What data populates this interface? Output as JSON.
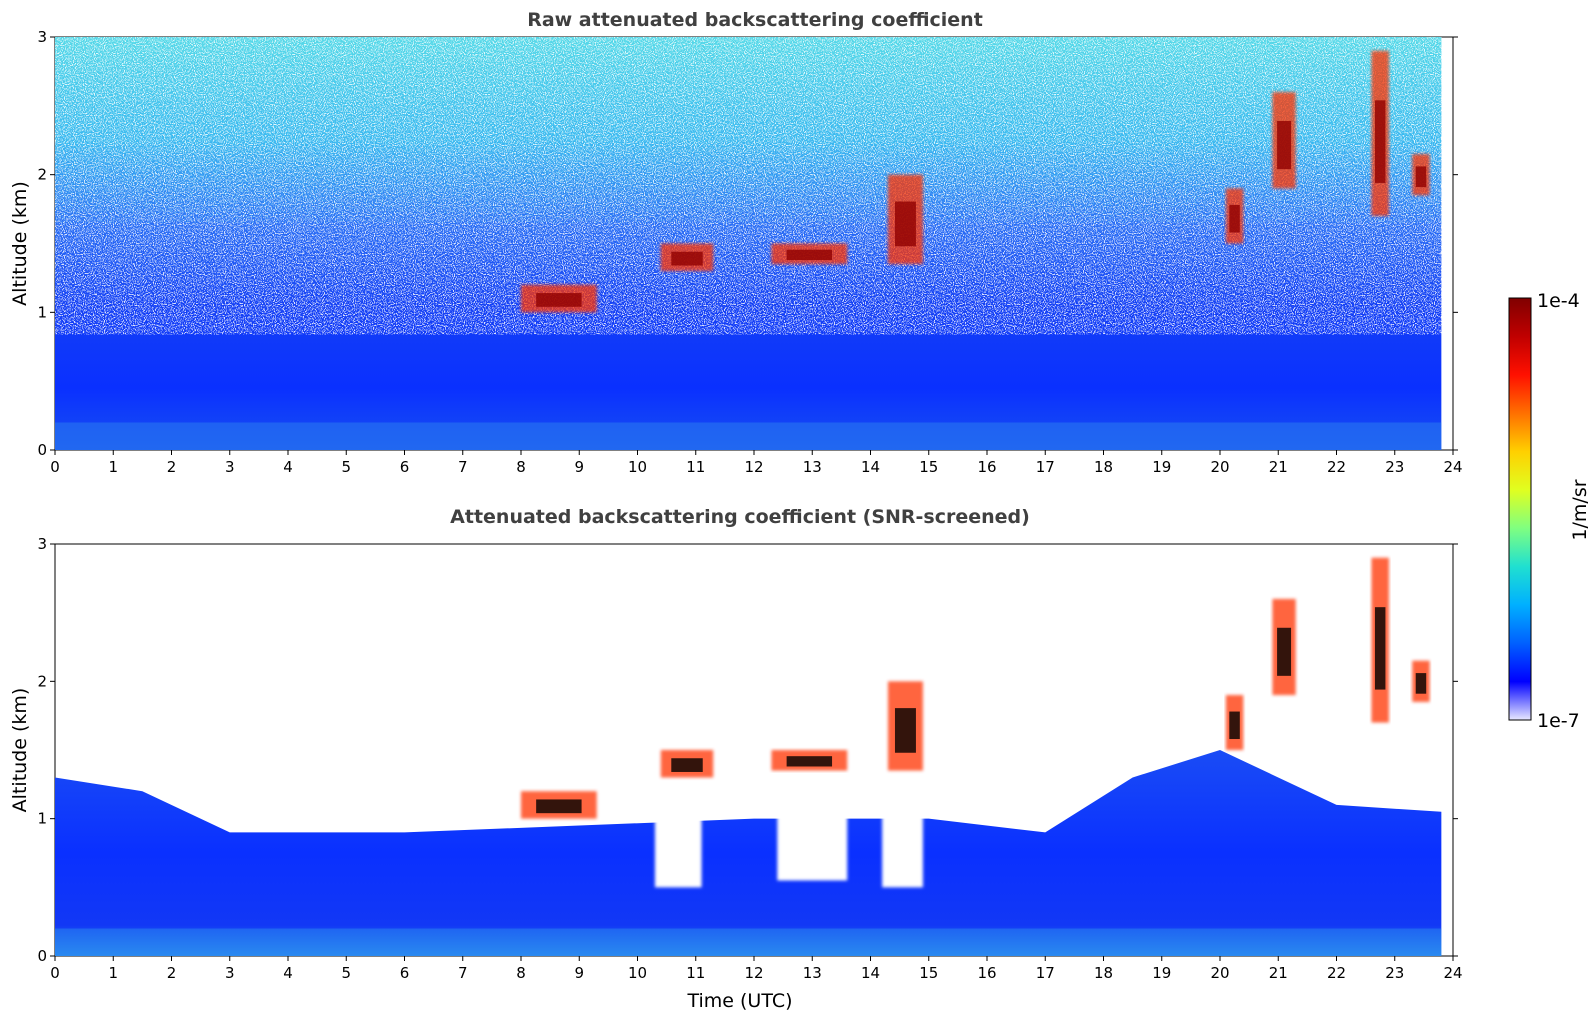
{
  "chart_data": [
    {
      "type": "heatmap",
      "title": "Raw attenuated backscattering coefficient",
      "xlabel": "",
      "ylabel": "Altitude (km)",
      "xlim": [
        0,
        24
      ],
      "ylim": [
        0,
        3
      ],
      "xticks": [
        "0",
        "1",
        "2",
        "3",
        "4",
        "5",
        "6",
        "7",
        "8",
        "9",
        "10",
        "11",
        "12",
        "13",
        "14",
        "15",
        "16",
        "17",
        "18",
        "19",
        "20",
        "21",
        "22",
        "23",
        "24"
      ],
      "yticks": [
        "0",
        "1",
        "2",
        "3"
      ],
      "data_extent_hours": 23.8,
      "boundary_layer_top_km": [
        [
          0,
          1.3
        ],
        [
          1.5,
          1.2
        ],
        [
          3,
          0.9
        ],
        [
          6,
          0.9
        ],
        [
          9,
          0.95
        ],
        [
          12,
          1.0
        ],
        [
          15,
          1.0
        ],
        [
          17,
          0.9
        ],
        [
          18.5,
          1.3
        ],
        [
          20,
          1.5
        ],
        [
          22,
          1.1
        ],
        [
          23.8,
          1.05
        ]
      ],
      "cloud_features": [
        {
          "time_range": [
            8.0,
            9.3
          ],
          "altitude_km": [
            1.0,
            1.2
          ],
          "level": "high"
        },
        {
          "time_range": [
            10.4,
            11.3
          ],
          "altitude_km": [
            1.3,
            1.5
          ],
          "level": "high"
        },
        {
          "time_range": [
            12.3,
            13.6
          ],
          "altitude_km": [
            1.35,
            1.5
          ],
          "level": "high"
        },
        {
          "time_range": [
            14.3,
            14.9
          ],
          "altitude_km": [
            1.35,
            2.0
          ],
          "level": "high"
        },
        {
          "time_range": [
            20.1,
            20.4
          ],
          "altitude_km": [
            1.5,
            1.9
          ],
          "level": "high"
        },
        {
          "time_range": [
            20.9,
            21.3
          ],
          "altitude_km": [
            1.9,
            2.6
          ],
          "level": "high"
        },
        {
          "time_range": [
            22.6,
            22.9
          ],
          "altitude_km": [
            1.7,
            2.9
          ],
          "level": "high"
        },
        {
          "time_range": [
            23.3,
            23.6
          ],
          "altitude_km": [
            1.85,
            2.15
          ],
          "level": "high"
        }
      ]
    },
    {
      "type": "heatmap",
      "title": "Attenuated backscattering coefficient (SNR-screened)",
      "xlabel": "Time (UTC)",
      "ylabel": "Altitude (km)",
      "xlim": [
        0,
        24
      ],
      "ylim": [
        0,
        3
      ],
      "xticks": [
        "0",
        "1",
        "2",
        "3",
        "4",
        "5",
        "6",
        "7",
        "8",
        "9",
        "10",
        "11",
        "12",
        "13",
        "14",
        "15",
        "16",
        "17",
        "18",
        "19",
        "20",
        "21",
        "22",
        "23",
        "24"
      ],
      "yticks": [
        "0",
        "1",
        "2",
        "3"
      ],
      "data_extent_hours": 23.8,
      "screened_gaps": [
        {
          "time_range": [
            10.3,
            11.1
          ],
          "altitude_km": [
            0.5,
            1.3
          ]
        },
        {
          "time_range": [
            12.4,
            13.6
          ],
          "altitude_km": [
            0.55,
            1.4
          ]
        },
        {
          "time_range": [
            14.2,
            14.9
          ],
          "altitude_km": [
            0.5,
            1.4
          ]
        }
      ]
    }
  ],
  "colorbar": {
    "label": "1/m/sr",
    "min_label": "1e-7",
    "max_label": "1e-4",
    "scale": "log",
    "colormap": "jet",
    "colors": [
      "#e8e8ff",
      "#0000ff",
      "#0060ff",
      "#00b0ff",
      "#20e0d0",
      "#80ff80",
      "#e0ff20",
      "#ffd000",
      "#ff7000",
      "#ff1000",
      "#c00000",
      "#800000"
    ]
  }
}
